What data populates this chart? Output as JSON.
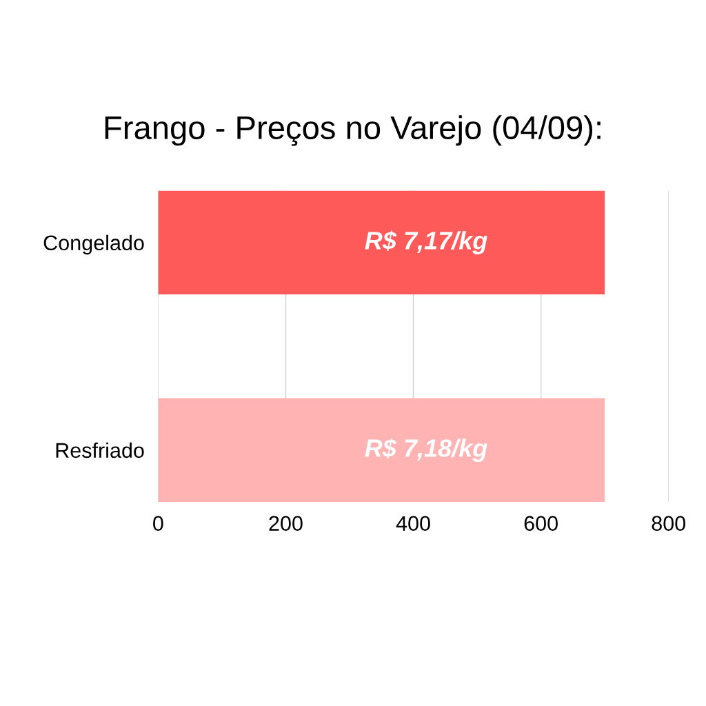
{
  "chart_data": {
    "type": "bar",
    "title": "Frango - Preços no Varejo (04/09):",
    "orientation": "horizontal",
    "categories": [
      "Congelado",
      "Resfriado"
    ],
    "values": [
      700,
      700
    ],
    "colors": [
      "#ff5a5a",
      "#ffb3b3"
    ],
    "value_labels": [
      "R$ 7,17/kg",
      "R$ 7,18/kg"
    ],
    "xlim": [
      0,
      800
    ],
    "xticks": [
      0,
      200,
      400,
      600,
      800
    ],
    "grid": "x",
    "legend": false
  }
}
